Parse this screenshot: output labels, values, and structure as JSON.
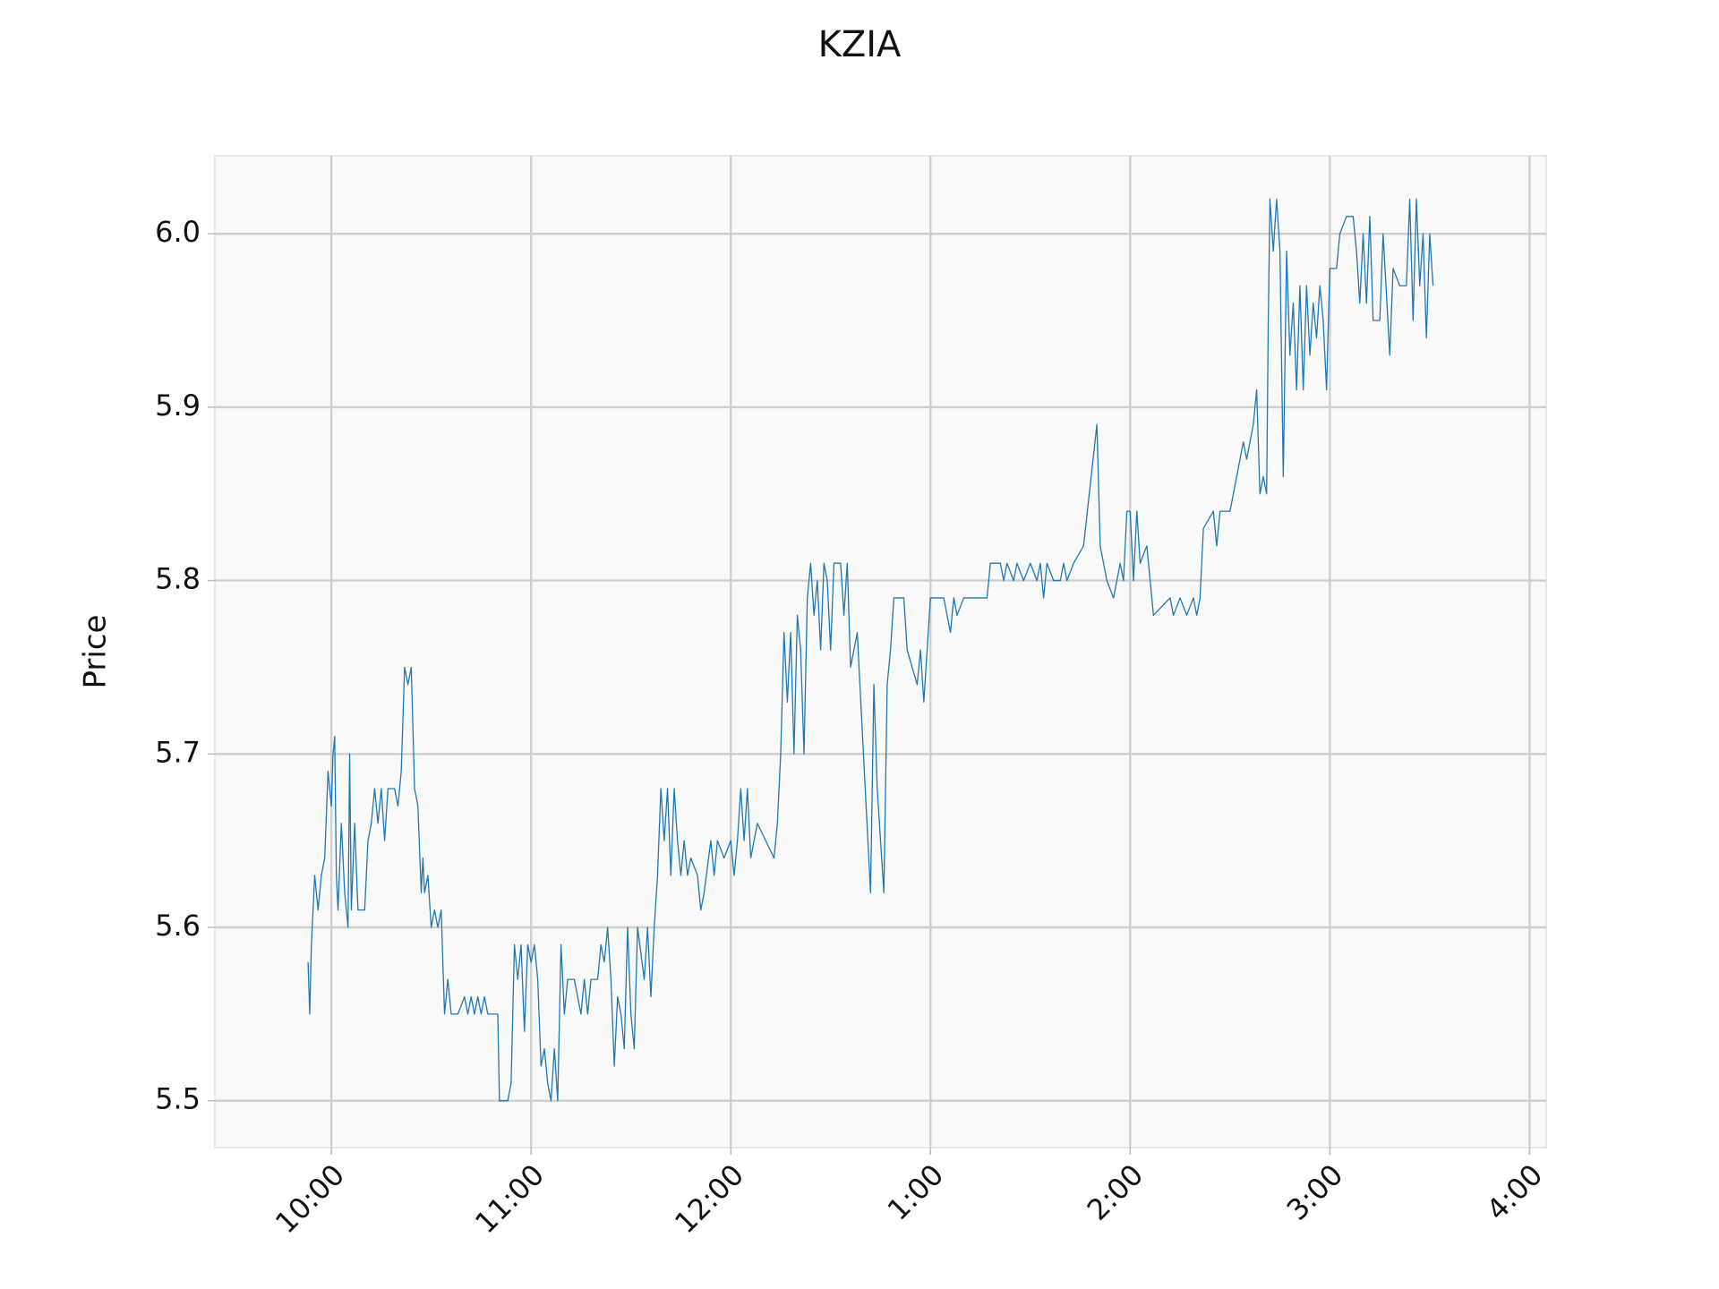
{
  "chart_data": {
    "type": "line",
    "title": "KZIA",
    "y_label": "Price",
    "grid": true,
    "xlim": [
      565,
      965
    ],
    "ylim": [
      5.473,
      6.045
    ],
    "xticks": [
      {
        "value": 600,
        "label": "10:00"
      },
      {
        "value": 660,
        "label": "11:00"
      },
      {
        "value": 720,
        "label": "12:00"
      },
      {
        "value": 780,
        "label": "1:00"
      },
      {
        "value": 840,
        "label": "2:00"
      },
      {
        "value": 900,
        "label": "3:00"
      },
      {
        "value": 960,
        "label": "4:00"
      }
    ],
    "yticks": [
      5.5,
      5.6,
      5.7,
      5.8,
      5.9,
      {
        "value": 6,
        "label": "6.0"
      }
    ],
    "color": "#1f77b4",
    "x": [
      593,
      593.5,
      594,
      595,
      596,
      597,
      598,
      599,
      600,
      600.5,
      601,
      601.5,
      602,
      603,
      604,
      605,
      605.5,
      606,
      607,
      608,
      610,
      611,
      612,
      613,
      614,
      615,
      616,
      617,
      619,
      620,
      621,
      622,
      623,
      624,
      625,
      626,
      627,
      627.5,
      628,
      629,
      630,
      631,
      632,
      633,
      634,
      635,
      636,
      638,
      640,
      641,
      642,
      643,
      644,
      645,
      646,
      647,
      650,
      650.5,
      653,
      654,
      655,
      656,
      657,
      658,
      659,
      660,
      661,
      662,
      663,
      664,
      665,
      666,
      667,
      668,
      669,
      670,
      671,
      673,
      674,
      675,
      676,
      677,
      678,
      680,
      681,
      682,
      683,
      684,
      685,
      686,
      687,
      688,
      689,
      690,
      691,
      692,
      694,
      695,
      696,
      697,
      698,
      699,
      700,
      701,
      702,
      703,
      704,
      705,
      706,
      707,
      708,
      710,
      711,
      712,
      714,
      715,
      716,
      718,
      720,
      721,
      722,
      723,
      724,
      725,
      726,
      728,
      733,
      734,
      735,
      736,
      737,
      738,
      739,
      740,
      741,
      742,
      743,
      744,
      745,
      746,
      747,
      748,
      749,
      750,
      751,
      753,
      754,
      755,
      756,
      757,
      758,
      762,
      763,
      764,
      766,
      767,
      768,
      769,
      772,
      773,
      776,
      777,
      778,
      779,
      780,
      784,
      785,
      786,
      787,
      788,
      790,
      797,
      798,
      801,
      802,
      803,
      805,
      806,
      808,
      810,
      812,
      813,
      814,
      815,
      817,
      819,
      820,
      821,
      823,
      826,
      830,
      831,
      833,
      835,
      837,
      838,
      839,
      840,
      841,
      842,
      843,
      845,
      847,
      852,
      853,
      855,
      857,
      859,
      860,
      861,
      862,
      865,
      866,
      867,
      870,
      871,
      874,
      875,
      877,
      878,
      879,
      880,
      881,
      881.5,
      882,
      883,
      884,
      885,
      886,
      887,
      888,
      889,
      890,
      891,
      892,
      893,
      894,
      895,
      896,
      897,
      898,
      899,
      900,
      902,
      903,
      905,
      907,
      908,
      909,
      910,
      911,
      912,
      913,
      915,
      916,
      918,
      919,
      921,
      923,
      924,
      925,
      926,
      927,
      928,
      929,
      930,
      931
    ],
    "values": [
      5.58,
      5.55,
      5.59,
      5.63,
      5.61,
      5.63,
      5.64,
      5.69,
      5.67,
      5.7,
      5.71,
      5.63,
      5.61,
      5.66,
      5.62,
      5.6,
      5.7,
      5.61,
      5.66,
      5.61,
      5.61,
      5.65,
      5.66,
      5.68,
      5.66,
      5.68,
      5.65,
      5.68,
      5.68,
      5.67,
      5.69,
      5.75,
      5.74,
      5.75,
      5.68,
      5.67,
      5.62,
      5.64,
      5.62,
      5.63,
      5.6,
      5.61,
      5.6,
      5.61,
      5.55,
      5.57,
      5.55,
      5.55,
      5.56,
      5.55,
      5.56,
      5.55,
      5.56,
      5.55,
      5.56,
      5.55,
      5.55,
      5.5,
      5.5,
      5.51,
      5.59,
      5.57,
      5.59,
      5.54,
      5.59,
      5.58,
      5.59,
      5.57,
      5.52,
      5.53,
      5.51,
      5.5,
      5.53,
      5.5,
      5.59,
      5.55,
      5.57,
      5.57,
      5.56,
      5.55,
      5.57,
      5.55,
      5.57,
      5.57,
      5.59,
      5.58,
      5.6,
      5.57,
      5.52,
      5.56,
      5.55,
      5.53,
      5.6,
      5.55,
      5.53,
      5.6,
      5.57,
      5.6,
      5.56,
      5.6,
      5.63,
      5.68,
      5.65,
      5.68,
      5.63,
      5.68,
      5.65,
      5.63,
      5.65,
      5.63,
      5.64,
      5.63,
      5.61,
      5.62,
      5.65,
      5.63,
      5.65,
      5.64,
      5.65,
      5.63,
      5.65,
      5.68,
      5.65,
      5.68,
      5.64,
      5.66,
      5.64,
      5.66,
      5.7,
      5.77,
      5.73,
      5.77,
      5.7,
      5.78,
      5.76,
      5.7,
      5.79,
      5.81,
      5.78,
      5.8,
      5.76,
      5.81,
      5.8,
      5.76,
      5.81,
      5.81,
      5.78,
      5.81,
      5.75,
      5.76,
      5.77,
      5.62,
      5.74,
      5.68,
      5.62,
      5.74,
      5.76,
      5.79,
      5.79,
      5.76,
      5.74,
      5.76,
      5.73,
      5.76,
      5.79,
      5.79,
      5.78,
      5.77,
      5.79,
      5.78,
      5.79,
      5.79,
      5.81,
      5.81,
      5.8,
      5.81,
      5.8,
      5.81,
      5.8,
      5.81,
      5.8,
      5.81,
      5.79,
      5.81,
      5.8,
      5.8,
      5.81,
      5.8,
      5.81,
      5.82,
      5.89,
      5.82,
      5.8,
      5.79,
      5.81,
      5.8,
      5.84,
      5.84,
      5.8,
      5.84,
      5.81,
      5.82,
      5.78,
      5.79,
      5.78,
      5.79,
      5.78,
      5.79,
      5.78,
      5.79,
      5.83,
      5.84,
      5.82,
      5.84,
      5.84,
      5.85,
      5.88,
      5.87,
      5.89,
      5.91,
      5.85,
      5.86,
      5.85,
      5.95,
      6.02,
      5.99,
      6.02,
      5.99,
      5.86,
      5.99,
      5.93,
      5.96,
      5.91,
      5.97,
      5.91,
      5.97,
      5.93,
      5.96,
      5.94,
      5.97,
      5.95,
      5.91,
      5.98,
      5.98,
      6.0,
      6.01,
      6.01,
      5.99,
      5.96,
      6.0,
      5.96,
      6.01,
      5.95,
      5.95,
      6.0,
      5.93,
      5.98,
      5.97,
      5.97,
      6.02,
      5.95,
      6.02,
      5.97,
      6.0,
      5.94,
      6.0,
      5.97
    ]
  }
}
